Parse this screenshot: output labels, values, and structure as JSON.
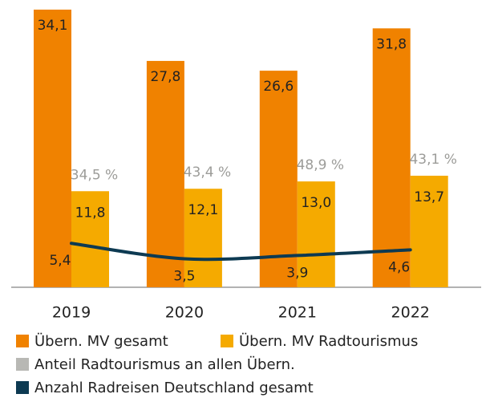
{
  "chart_data": {
    "type": "bar",
    "categories": [
      "2019",
      "2020",
      "2021",
      "2022"
    ],
    "series": [
      {
        "name": "Übern. MV gesamt",
        "type": "bar",
        "color": "#f08200",
        "values": [
          34.1,
          27.8,
          26.6,
          31.8
        ],
        "value_labels": [
          "34,1",
          "27,8",
          "26,6",
          "31,8"
        ]
      },
      {
        "name": "Übern. MV Radtourismus",
        "type": "bar",
        "color": "#f5aa00",
        "values": [
          11.8,
          12.1,
          13.0,
          13.7
        ],
        "value_labels": [
          "11,8",
          "12,1",
          "13,0",
          "13,7"
        ]
      },
      {
        "name": "Anteil Radtourismus an allen Übern.",
        "type": "label",
        "color": "#b8b8b4",
        "values": [
          34.5,
          43.4,
          48.9,
          43.1
        ],
        "value_labels": [
          "34,5 %",
          "43,4 %",
          "48,9 %",
          "43,1 %"
        ]
      },
      {
        "name": "Anzahl Radreisen Deutschland gesamt",
        "type": "line",
        "color": "#0d3a52",
        "values": [
          5.4,
          3.5,
          3.9,
          4.6
        ],
        "value_labels": [
          "5,4",
          "3,5",
          "3,9",
          "4,6"
        ]
      }
    ]
  }
}
